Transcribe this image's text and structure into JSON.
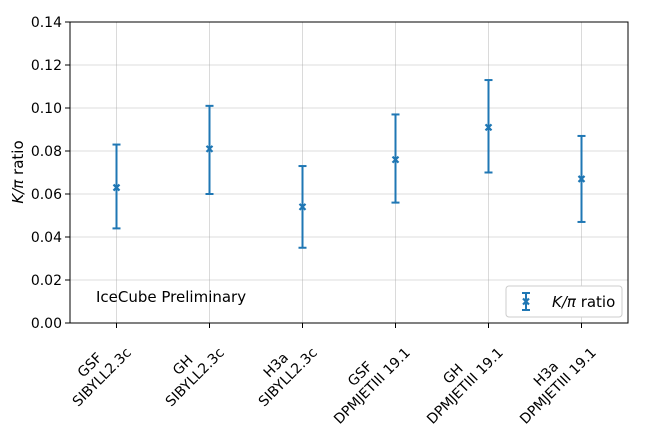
{
  "chart_data": {
    "type": "scatter",
    "ylabel_var": "K/π",
    "ylabel_suffix": " ratio",
    "ylim": [
      0.0,
      0.14
    ],
    "yticks": [
      0.0,
      0.02,
      0.04,
      0.06,
      0.08,
      0.1,
      0.12,
      0.14
    ],
    "ytick_labels": [
      "0.00",
      "0.02",
      "0.04",
      "0.06",
      "0.08",
      "0.10",
      "0.12",
      "0.14"
    ],
    "categories": [
      {
        "line1": "GSF",
        "line2": "SIBYLL2.3c"
      },
      {
        "line1": "GH",
        "line2": "SIBYLL2.3c"
      },
      {
        "line1": "H3a",
        "line2": "SIBYLL2.3c"
      },
      {
        "line1": "GSF",
        "line2": "DPMJETIII 19.1"
      },
      {
        "line1": "GH",
        "line2": "DPMJETIII 19.1"
      },
      {
        "line1": "H3a",
        "line2": "DPMJETIII 19.1"
      }
    ],
    "series": [
      {
        "name_var": "K/π",
        "name_suffix": " ratio",
        "values": [
          0.063,
          0.081,
          0.054,
          0.076,
          0.091,
          0.067
        ],
        "err_low": [
          0.044,
          0.06,
          0.035,
          0.056,
          0.07,
          0.047
        ],
        "err_high": [
          0.083,
          0.101,
          0.073,
          0.097,
          0.113,
          0.087
        ],
        "color": "#1f77b4",
        "marker": "x"
      }
    ],
    "annotation": "IceCube Preliminary",
    "grid": true,
    "legend_position": "bottom-right"
  }
}
